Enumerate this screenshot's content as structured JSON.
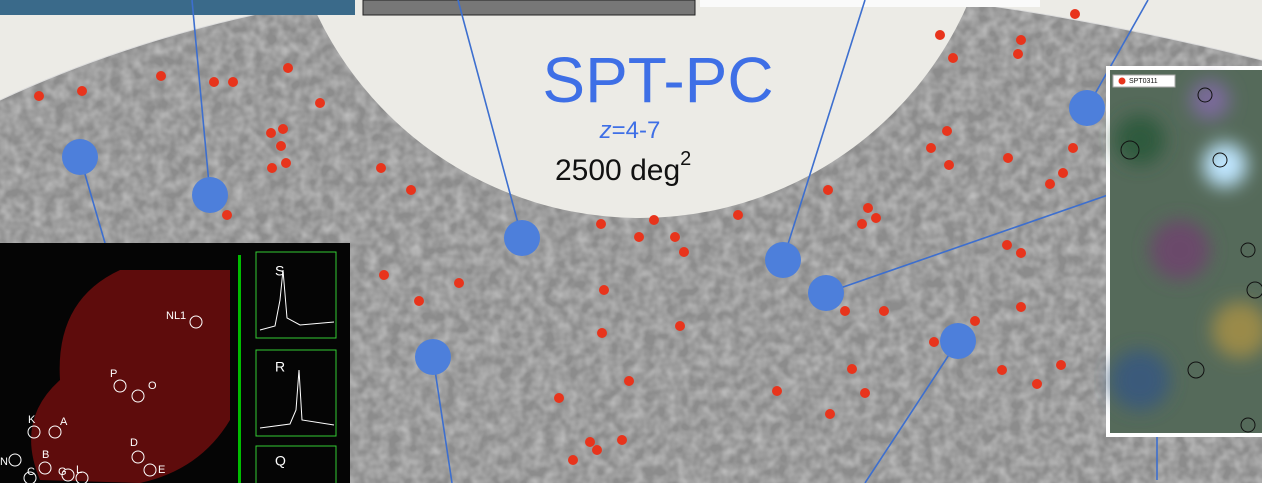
{
  "survey": {
    "name": "SPT-PC",
    "redshift": {
      "variable": "z",
      "range": "=4-7"
    },
    "area": {
      "value": "2500 deg",
      "exponent": "2"
    }
  },
  "spectra_inset": {
    "panels": [
      "S",
      "R",
      "Q"
    ],
    "sources": [
      "NL1",
      "P",
      "O",
      "K",
      "A",
      "D",
      "E",
      "B",
      "C",
      "G",
      "L",
      "N"
    ]
  },
  "image_inset": {
    "legend": "SPT0311"
  }
}
